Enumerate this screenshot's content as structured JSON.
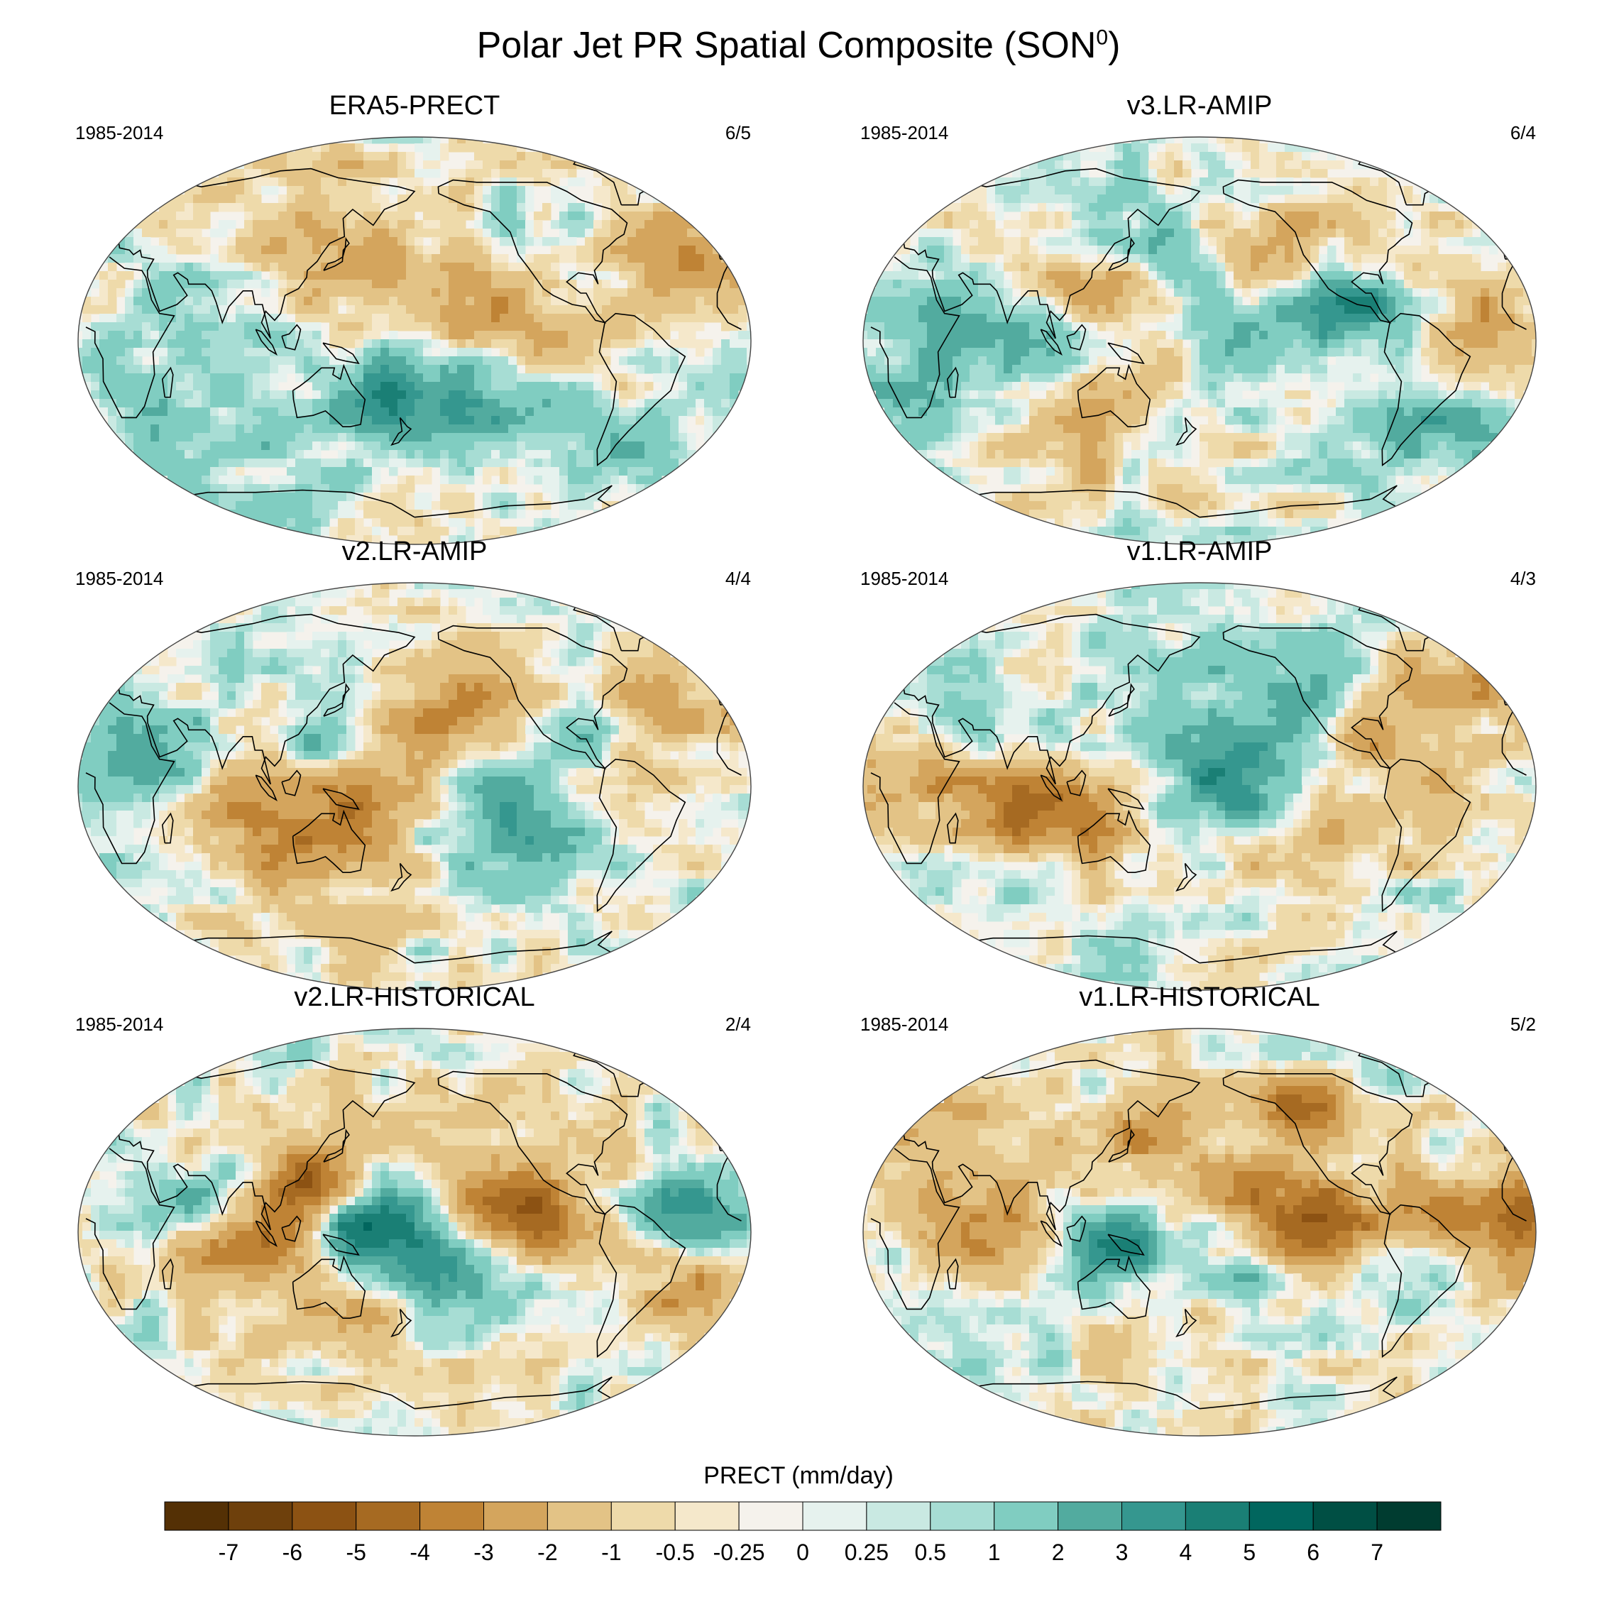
{
  "figure": {
    "title": "Polar Jet PR Spatial Composite (SON",
    "title_superscript": "0",
    "title_close": ")"
  },
  "panels": [
    {
      "title": "ERA5-PRECT",
      "period": "1985-2014",
      "ratio": "6/5"
    },
    {
      "title": "v3.LR-AMIP",
      "period": "1985-2014",
      "ratio": "6/4"
    },
    {
      "title": "v2.LR-AMIP",
      "period": "1985-2014",
      "ratio": "4/4"
    },
    {
      "title": "v1.LR-AMIP",
      "period": "1985-2014",
      "ratio": "4/3"
    },
    {
      "title": "v2.LR-HISTORICAL",
      "period": "1985-2014",
      "ratio": "2/4"
    },
    {
      "title": "v1.LR-HISTORICAL",
      "period": "1985-2014",
      "ratio": "5/2"
    }
  ],
  "colorbar": {
    "label": "PRECT (mm/day)",
    "ticks": [
      "-7",
      "-6",
      "-5",
      "-4",
      "-3",
      "-2",
      "-1",
      "-0.5",
      "-0.25",
      "0",
      "0.25",
      "0.5",
      "1",
      "2",
      "3",
      "4",
      "5",
      "6",
      "7"
    ],
    "colors": [
      "#543005",
      "#6e400c",
      "#8c5213",
      "#a66a22",
      "#bf8335",
      "#d4a55d",
      "#e3c386",
      "#eedaaa",
      "#f5e8cb",
      "#f5f2ec",
      "#e6f2ee",
      "#c9e9e2",
      "#a7ddd4",
      "#80cdc1",
      "#52ab9f",
      "#35978f",
      "#1a7f75",
      "#01665e",
      "#004f44",
      "#003c30"
    ]
  },
  "panel_anomaly_features": [
    {
      "name": "era5",
      "features": [
        {
          "lon": 150,
          "lat": 38,
          "v": -2.5,
          "r": 30
        },
        {
          "lon": -125,
          "lat": 42,
          "v": 1.5,
          "r": 18
        },
        {
          "lon": -145,
          "lat": 8,
          "v": -3,
          "r": 22
        },
        {
          "lon": 160,
          "lat": -15,
          "v": 3,
          "r": 25
        },
        {
          "lon": -160,
          "lat": -30,
          "v": 2.5,
          "r": 20
        },
        {
          "lon": -40,
          "lat": 35,
          "v": -2.5,
          "r": 18
        },
        {
          "lon": 90,
          "lat": 8,
          "v": 1.5,
          "r": 25
        },
        {
          "lon": 120,
          "lat": -5,
          "v": -2,
          "r": 18
        },
        {
          "lon": -70,
          "lat": -45,
          "v": 2,
          "r": 15
        },
        {
          "lon": 40,
          "lat": -45,
          "v": 1.2,
          "r": 25
        }
      ]
    },
    {
      "name": "v3amip",
      "features": [
        {
          "lon": 125,
          "lat": 22,
          "v": -4.5,
          "r": 14
        },
        {
          "lon": -90,
          "lat": 18,
          "v": 4.5,
          "r": 12
        },
        {
          "lon": -160,
          "lat": 2,
          "v": 3.5,
          "r": 22
        },
        {
          "lon": 165,
          "lat": -8,
          "v": -3,
          "r": 18
        },
        {
          "lon": 60,
          "lat": 5,
          "v": 2.5,
          "r": 25
        },
        {
          "lon": -25,
          "lat": 10,
          "v": -2,
          "r": 20
        },
        {
          "lon": 0,
          "lat": -35,
          "v": 1.5,
          "r": 25
        },
        {
          "lon": -140,
          "lat": 38,
          "v": -2,
          "r": 24
        },
        {
          "lon": 150,
          "lat": 45,
          "v": 2,
          "r": 18
        },
        {
          "lon": -45,
          "lat": -40,
          "v": 2,
          "r": 18
        },
        {
          "lon": 110,
          "lat": -45,
          "v": -1.5,
          "r": 25
        }
      ]
    },
    {
      "name": "v2amip",
      "features": [
        {
          "lon": 165,
          "lat": 2,
          "v": -4,
          "r": 22
        },
        {
          "lon": 130,
          "lat": 22,
          "v": 3.5,
          "r": 12
        },
        {
          "lon": -150,
          "lat": -5,
          "v": 3,
          "r": 22
        },
        {
          "lon": 80,
          "lat": -8,
          "v": -4,
          "r": 22
        },
        {
          "lon": 55,
          "lat": 8,
          "v": 3,
          "r": 20
        },
        {
          "lon": -80,
          "lat": 25,
          "v": 3,
          "r": 12
        },
        {
          "lon": -150,
          "lat": 38,
          "v": -2.5,
          "r": 22
        },
        {
          "lon": -50,
          "lat": 30,
          "v": -2.5,
          "r": 20
        },
        {
          "lon": -110,
          "lat": -30,
          "v": 2.5,
          "r": 16
        },
        {
          "lon": 140,
          "lat": -40,
          "v": -1.5,
          "r": 22
        },
        {
          "lon": 10,
          "lat": -10,
          "v": 1.5,
          "r": 18
        }
      ]
    },
    {
      "name": "v1amip",
      "features": [
        {
          "lon": -175,
          "lat": -3,
          "v": 4,
          "r": 22
        },
        {
          "lon": 125,
          "lat": -5,
          "v": -3.5,
          "r": 22
        },
        {
          "lon": 80,
          "lat": -10,
          "v": -3,
          "r": 20
        },
        {
          "lon": 90,
          "lat": 15,
          "v": 2.5,
          "r": 18
        },
        {
          "lon": -90,
          "lat": 22,
          "v": -3.5,
          "r": 12
        },
        {
          "lon": -40,
          "lat": 45,
          "v": -2.5,
          "r": 18
        },
        {
          "lon": 20,
          "lat": 0,
          "v": -2.5,
          "r": 20
        },
        {
          "lon": -140,
          "lat": 35,
          "v": 2,
          "r": 24
        },
        {
          "lon": -60,
          "lat": -10,
          "v": -2,
          "r": 16
        },
        {
          "lon": 50,
          "lat": -30,
          "v": 1.5,
          "r": 22
        },
        {
          "lon": -125,
          "lat": -30,
          "v": -2,
          "r": 20
        }
      ]
    },
    {
      "name": "v2hist",
      "features": [
        {
          "lon": 90,
          "lat": -3,
          "v": -5,
          "r": 20
        },
        {
          "lon": 120,
          "lat": 22,
          "v": -4.5,
          "r": 14
        },
        {
          "lon": 160,
          "lat": 3,
          "v": 6,
          "r": 16
        },
        {
          "lon": -120,
          "lat": 7,
          "v": -4.5,
          "r": 18
        },
        {
          "lon": 75,
          "lat": 12,
          "v": 4,
          "r": 16
        },
        {
          "lon": -30,
          "lat": 8,
          "v": 3.5,
          "r": 16
        },
        {
          "lon": -160,
          "lat": -20,
          "v": 3,
          "r": 16
        },
        {
          "lon": -40,
          "lat": -25,
          "v": -2.5,
          "r": 18
        },
        {
          "lon": -155,
          "lat": 35,
          "v": -2,
          "r": 22
        },
        {
          "lon": 150,
          "lat": -40,
          "v": -1.5,
          "r": 22
        }
      ]
    },
    {
      "name": "v1hist",
      "features": [
        {
          "lon": -130,
          "lat": 5,
          "v": -5,
          "r": 22
        },
        {
          "lon": -20,
          "lat": 5,
          "v": -4.5,
          "r": 22
        },
        {
          "lon": 70,
          "lat": 2,
          "v": -3,
          "r": 22
        },
        {
          "lon": 135,
          "lat": -5,
          "v": 4,
          "r": 16
        },
        {
          "lon": -120,
          "lat": 55,
          "v": -4,
          "r": 12
        },
        {
          "lon": 150,
          "lat": 40,
          "v": -2.5,
          "r": 18
        },
        {
          "lon": -160,
          "lat": -15,
          "v": 3,
          "r": 18
        },
        {
          "lon": -60,
          "lat": -15,
          "v": 2.5,
          "r": 16
        },
        {
          "lon": 30,
          "lat": 45,
          "v": -2,
          "r": 22
        },
        {
          "lon": 160,
          "lat": -40,
          "v": -1.5,
          "r": 22
        },
        {
          "lon": 40,
          "lat": -40,
          "v": 1.5,
          "r": 25
        }
      ]
    }
  ]
}
